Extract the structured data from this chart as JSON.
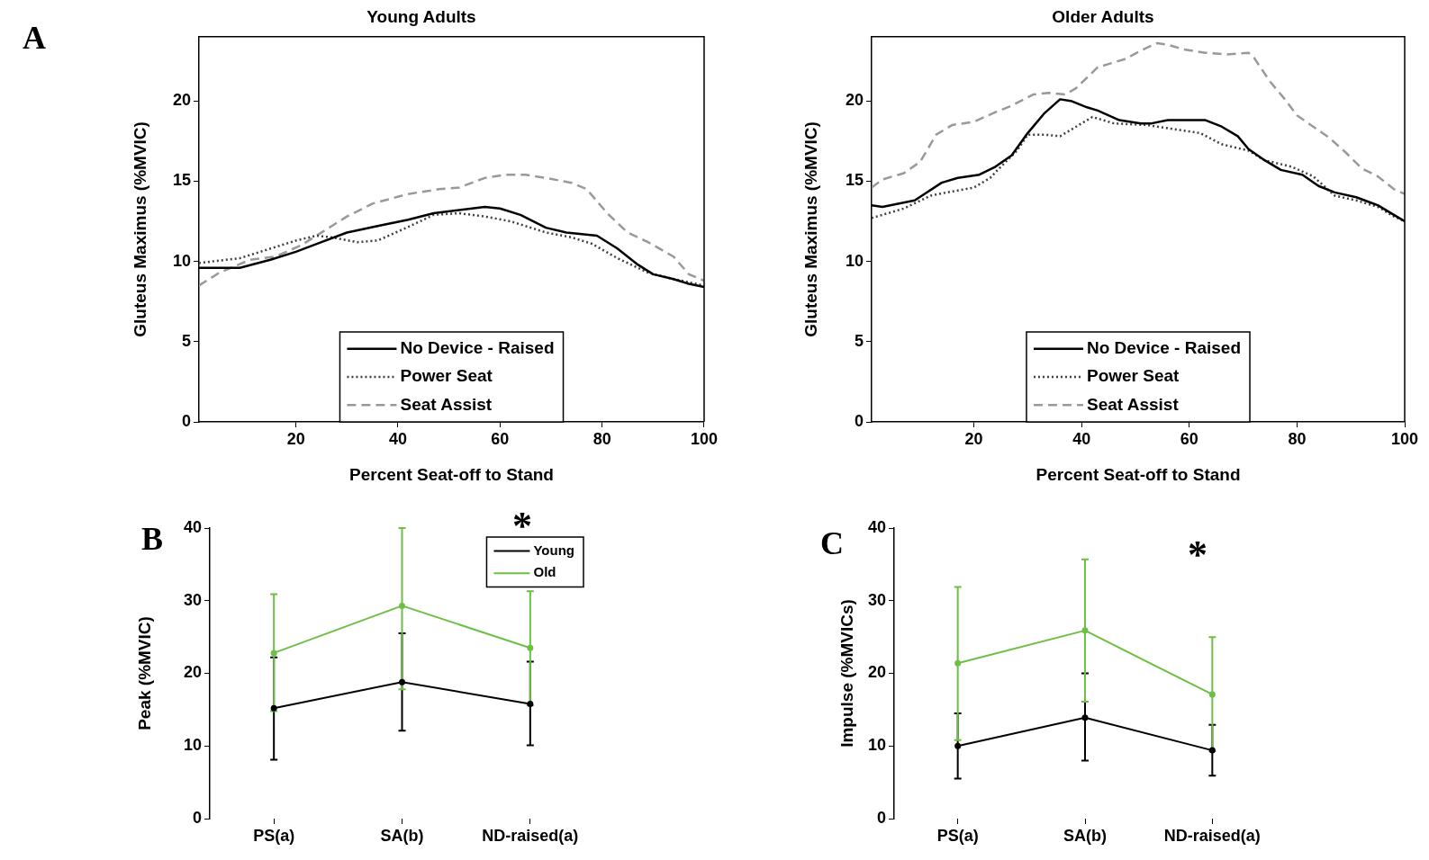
{
  "chart_data": [
    {
      "type": "line",
      "title": "Young Adults",
      "xlabel": "Percent Seat-off to Stand",
      "ylabel": "Gluteus Maximus (%MVIC)",
      "annotations": [
        "A"
      ],
      "xlim": [
        1,
        100
      ],
      "xticks": [
        20,
        40,
        60,
        80,
        100
      ],
      "ylim": [
        0,
        24
      ],
      "yticks": [
        0,
        5,
        10,
        15,
        20
      ],
      "legend": "bottom",
      "marker": "none",
      "series": [
        {
          "name": "No Device - Raised",
          "color": "#000000",
          "line_style": "solid",
          "x": [
            1,
            9,
            15,
            20,
            25,
            30,
            36,
            42,
            47,
            52,
            57,
            60,
            64,
            69,
            73,
            76,
            79,
            83,
            87,
            90,
            94,
            97,
            100
          ],
          "values": [
            9.6,
            9.6,
            10.1,
            10.6,
            11.2,
            11.8,
            12.2,
            12.6,
            13.0,
            13.2,
            13.4,
            13.3,
            12.9,
            12.1,
            11.8,
            11.7,
            11.6,
            10.8,
            9.8,
            9.2,
            8.9,
            8.6,
            8.4
          ]
        },
        {
          "name": "Power Seat",
          "color": "#404040",
          "line_style": "dotted",
          "x": [
            1,
            9,
            15,
            20,
            24,
            27,
            32,
            36,
            41,
            47,
            52,
            57,
            62,
            69,
            74,
            78,
            83,
            89,
            94,
            100
          ],
          "values": [
            9.9,
            10.2,
            10.8,
            11.3,
            11.6,
            11.5,
            11.2,
            11.3,
            12.0,
            12.9,
            13.0,
            12.8,
            12.5,
            11.8,
            11.5,
            11.1,
            10.2,
            9.3,
            8.9,
            8.5
          ]
        },
        {
          "name": "Seat Assist",
          "color": "#999999",
          "line_style": "dashed",
          "x": [
            1,
            5,
            11,
            16,
            21,
            26,
            30,
            35,
            42,
            48,
            52,
            57,
            61,
            65,
            69,
            74,
            77,
            81,
            85,
            89,
            94,
            97,
            100
          ],
          "values": [
            8.5,
            9.3,
            10.1,
            10.3,
            11.0,
            12.0,
            12.8,
            13.6,
            14.2,
            14.5,
            14.6,
            15.2,
            15.4,
            15.4,
            15.2,
            14.9,
            14.5,
            13.0,
            11.8,
            11.2,
            10.3,
            9.2,
            8.8
          ]
        }
      ]
    },
    {
      "type": "line",
      "title": "Older Adults",
      "xlabel": "Percent Seat-off to Stand",
      "ylabel": "Gluteus Maximus (%MVIC)",
      "xlim": [
        1,
        100
      ],
      "xticks": [
        20,
        40,
        60,
        80,
        100
      ],
      "ylim": [
        0,
        24
      ],
      "yticks": [
        0,
        5,
        10,
        15,
        20
      ],
      "legend": "bottom",
      "marker": "none",
      "series": [
        {
          "name": "No Device - Raised",
          "color": "#000000",
          "line_style": "solid",
          "x": [
            1,
            3,
            9,
            14,
            17,
            21,
            24,
            27,
            30,
            33,
            36,
            38,
            41,
            43,
            47,
            51,
            53,
            56,
            63,
            66,
            69,
            71,
            74,
            77,
            81,
            84,
            87,
            91,
            95,
            98,
            100
          ],
          "values": [
            13.5,
            13.4,
            13.8,
            14.9,
            15.2,
            15.4,
            15.9,
            16.6,
            18.0,
            19.2,
            20.1,
            20.0,
            19.6,
            19.4,
            18.8,
            18.6,
            18.6,
            18.8,
            18.8,
            18.4,
            17.8,
            17.0,
            16.3,
            15.7,
            15.4,
            14.7,
            14.3,
            14.0,
            13.5,
            12.9,
            12.5
          ]
        },
        {
          "name": "Power Seat",
          "color": "#404040",
          "line_style": "dotted",
          "x": [
            1,
            7,
            12,
            15,
            20,
            23,
            25,
            28,
            30,
            33,
            36,
            38,
            42,
            46,
            52,
            58,
            62,
            66,
            71,
            74,
            79,
            83,
            87,
            91,
            95,
            98,
            100
          ],
          "values": [
            12.7,
            13.3,
            14.1,
            14.3,
            14.6,
            15.2,
            15.9,
            16.9,
            17.9,
            17.9,
            17.8,
            18.2,
            19.0,
            18.6,
            18.5,
            18.2,
            18.0,
            17.3,
            16.9,
            16.3,
            15.9,
            15.3,
            14.1,
            13.8,
            13.4,
            12.8,
            12.5
          ]
        },
        {
          "name": "Seat Assist",
          "color": "#999999",
          "line_style": "dashed",
          "x": [
            1,
            3,
            7,
            10,
            13,
            16,
            20,
            24,
            27,
            31,
            34,
            37,
            39,
            43,
            48,
            52,
            54,
            56,
            59,
            63,
            67,
            71,
            72,
            75,
            78,
            80,
            83,
            86,
            89,
            92,
            95,
            98,
            100
          ],
          "values": [
            14.6,
            15.1,
            15.5,
            16.2,
            17.9,
            18.5,
            18.7,
            19.3,
            19.7,
            20.4,
            20.5,
            20.4,
            20.8,
            22.1,
            22.6,
            23.3,
            23.6,
            23.5,
            23.2,
            23.0,
            22.9,
            23.0,
            22.7,
            21.2,
            20.0,
            19.1,
            18.4,
            17.7,
            16.8,
            15.8,
            15.3,
            14.5,
            14.2
          ]
        }
      ]
    },
    {
      "type": "line",
      "ylabel": "Peak (%MVIC)",
      "annotations": [
        "B",
        "*"
      ],
      "categories": [
        "PS(a)",
        "SA(b)",
        "ND-raised(a)"
      ],
      "ylim": [
        0,
        40
      ],
      "yticks": [
        0,
        10,
        20,
        30,
        40
      ],
      "legend": "top right",
      "marker": "circle",
      "series": [
        {
          "name": "Young",
          "color": "#000000",
          "values": [
            15.2,
            18.8,
            15.8
          ],
          "errors": [
            [
              8.1,
              22.2
            ],
            [
              12.1,
              25.5
            ],
            [
              10.1,
              21.6
            ]
          ]
        },
        {
          "name": "Old",
          "color": "#6dbf45",
          "values": [
            22.8,
            29.3,
            23.5
          ],
          "errors": [
            [
              14.8,
              30.9
            ],
            [
              17.8,
              40
            ],
            [
              15.6,
              31.3
            ]
          ]
        }
      ]
    },
    {
      "type": "line",
      "ylabel": "Impulse (%MVICs)",
      "annotations": [
        "C",
        "*"
      ],
      "categories": [
        "PS(a)",
        "SA(b)",
        "ND-raised(a)"
      ],
      "ylim": [
        0,
        40
      ],
      "yticks": [
        0,
        10,
        20,
        30,
        40
      ],
      "marker": "circle",
      "series": [
        {
          "color": "#000000",
          "values": [
            10.0,
            13.9,
            9.4
          ],
          "errors": [
            [
              5.5,
              14.5
            ],
            [
              8.0,
              20.0
            ],
            [
              5.9,
              12.9
            ]
          ]
        },
        {
          "color": "#6dbf45",
          "values": [
            21.4,
            25.9,
            17.1
          ],
          "errors": [
            [
              10.8,
              31.9
            ],
            [
              16.1,
              35.7
            ],
            [
              9.3,
              25.0
            ]
          ]
        }
      ]
    }
  ]
}
